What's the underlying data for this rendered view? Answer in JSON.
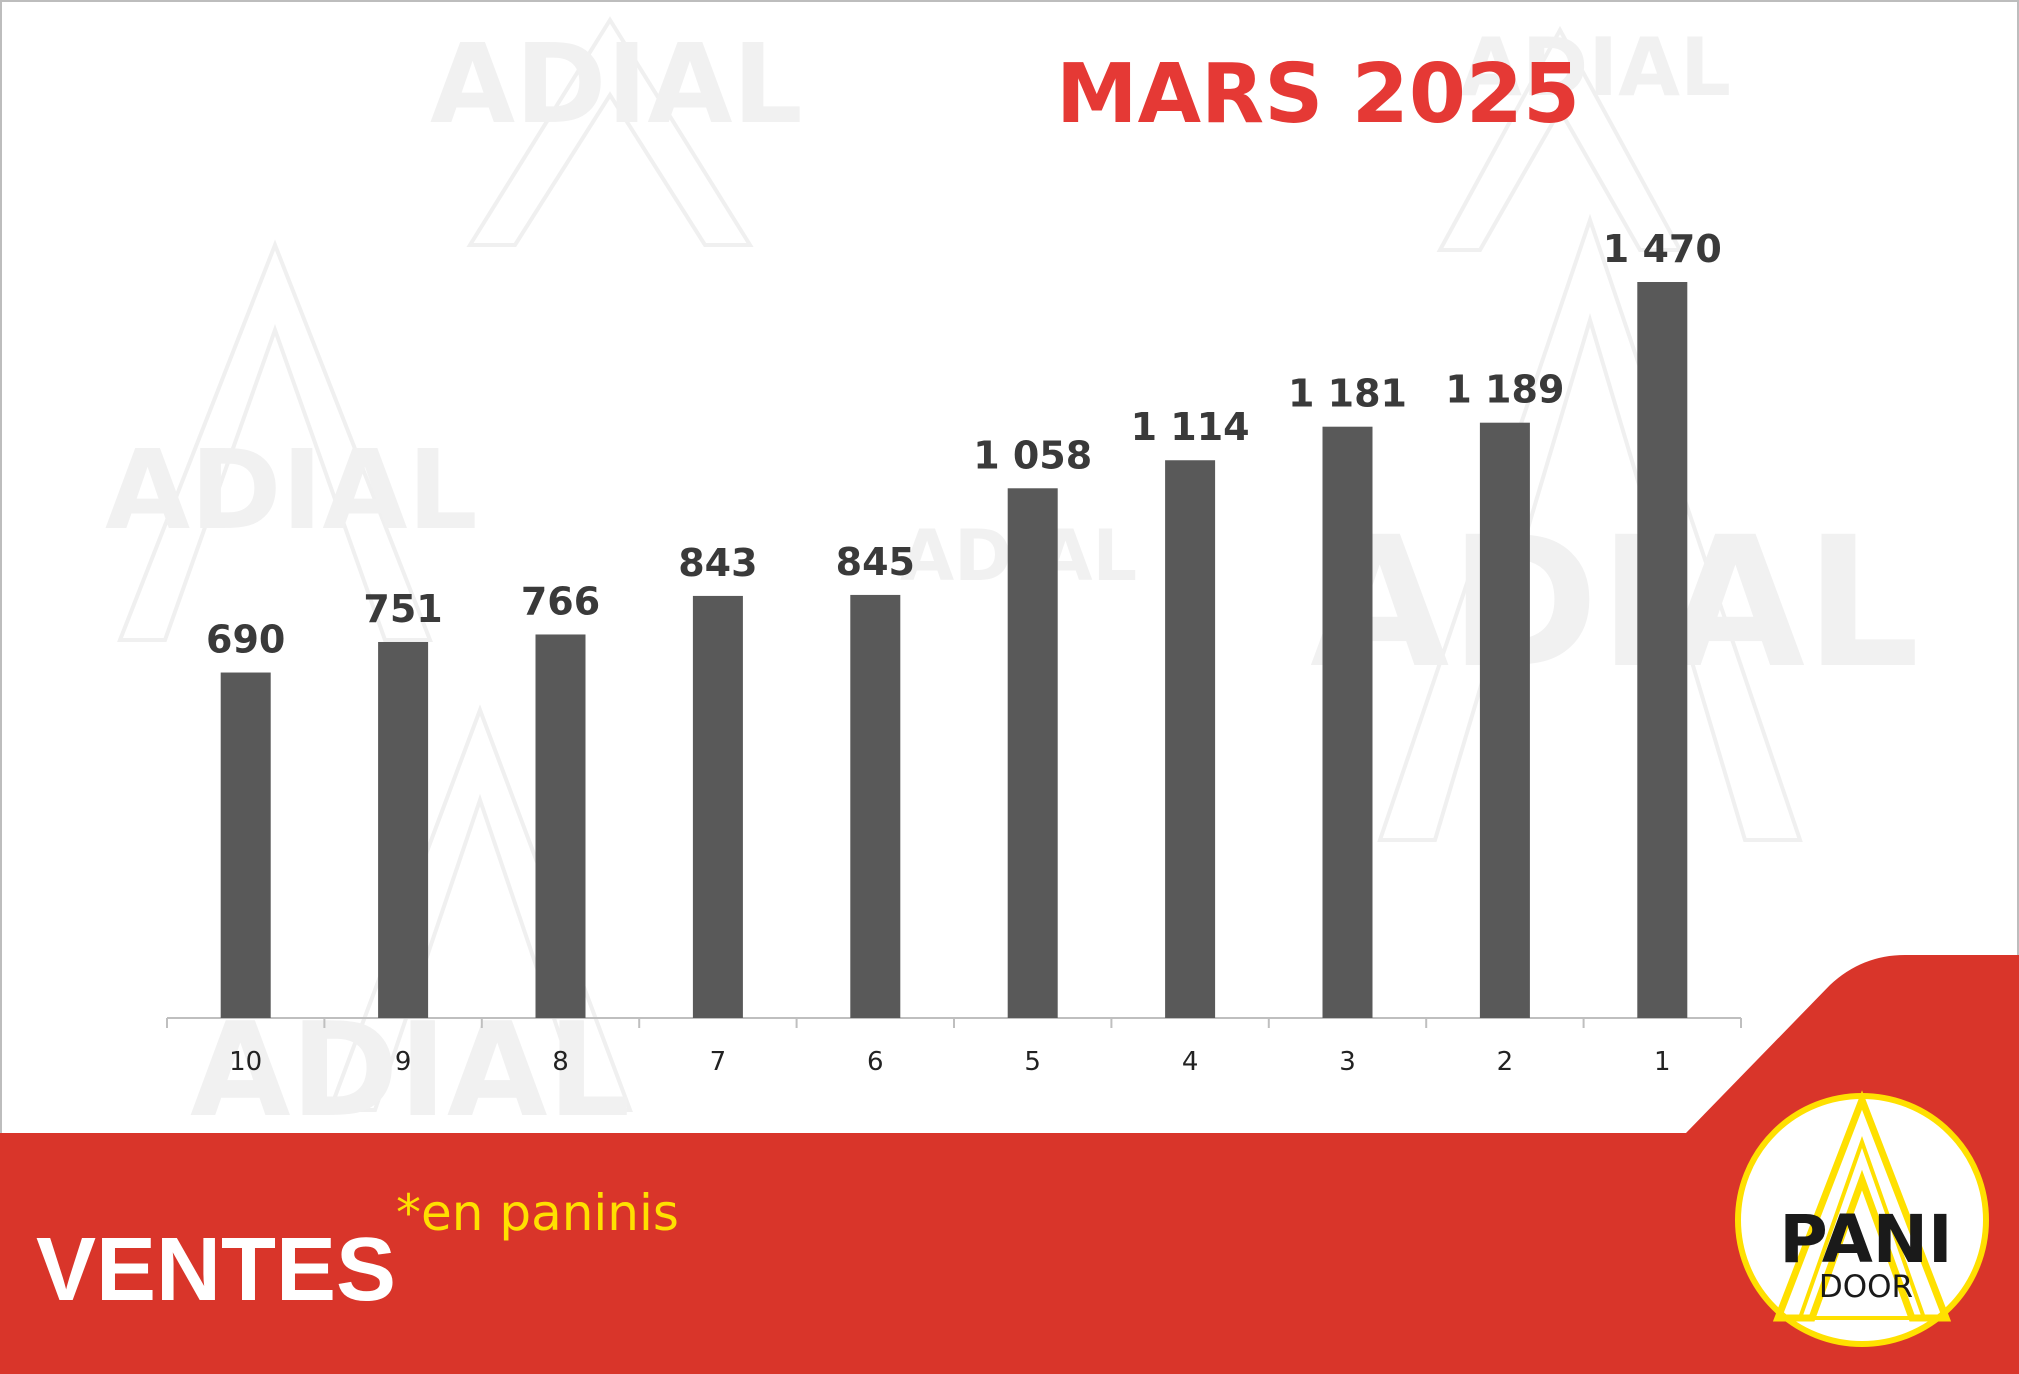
{
  "chart_data": {
    "type": "bar",
    "title": "MARS 2025",
    "categories": [
      "10",
      "9",
      "8",
      "7",
      "6",
      "5",
      "4",
      "3",
      "2",
      "1"
    ],
    "values": [
      690,
      751,
      766,
      843,
      845,
      1058,
      1114,
      1181,
      1189,
      1470
    ],
    "value_labels": [
      "690",
      "751",
      "766",
      "843",
      "845",
      "1 058",
      "1 114",
      "1 181",
      "1 189",
      "1 470"
    ],
    "xlabel": "",
    "ylabel": "",
    "ylim": [
      0,
      1470
    ],
    "grid": false,
    "legend": "none",
    "bar_color": "#595959"
  },
  "footer": {
    "label": "VENTES",
    "note": "*en paninis"
  },
  "logo": {
    "line1": "PANI",
    "line2": "DOOR"
  },
  "watermark": "ADIAL",
  "colors": {
    "title": "#e53935",
    "band": "#d9352a",
    "note": "#ffe000",
    "logo_ring": "#ffe000"
  }
}
